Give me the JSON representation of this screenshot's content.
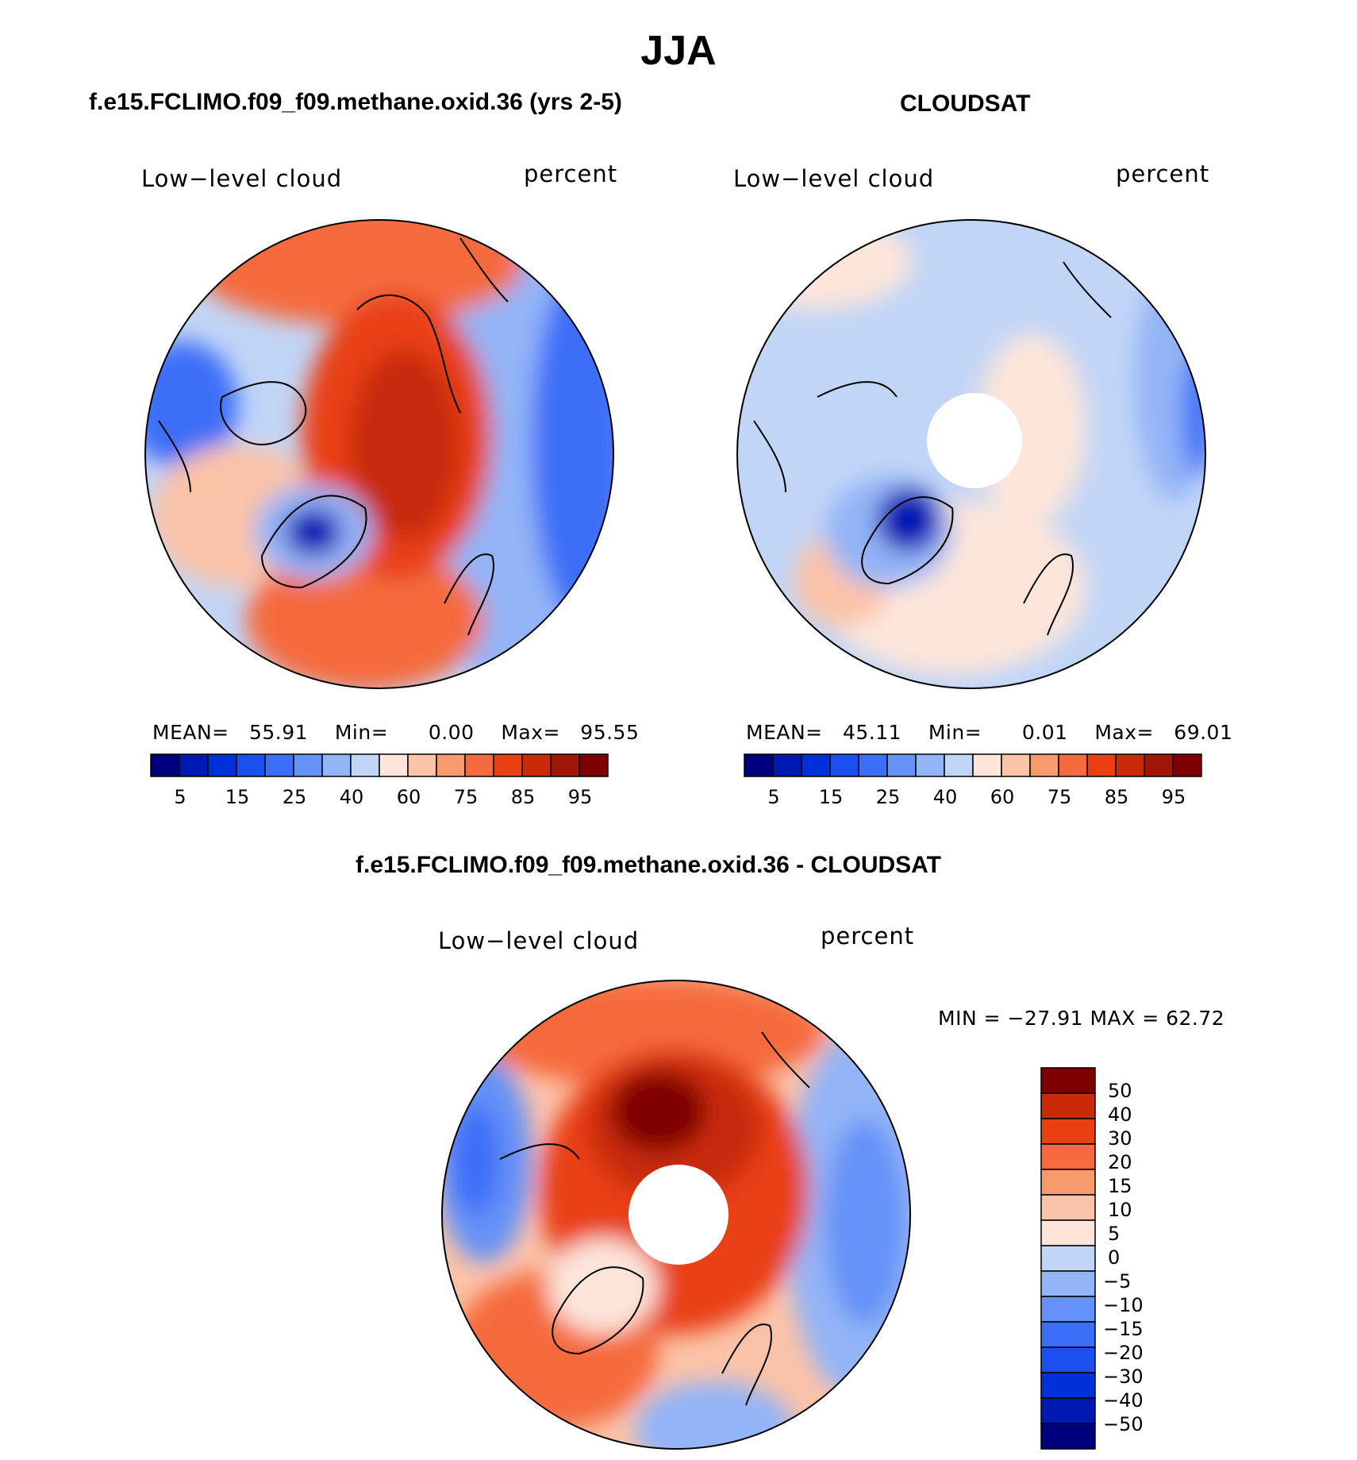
{
  "title": "JJA",
  "panels": {
    "model": {
      "case_title": "f.e15.FCLIMO.f09_f09.methane.oxid.36 (yrs 2-5)",
      "variable": "Low−level cloud",
      "units": "percent",
      "stats": {
        "mean_label": "MEAN=",
        "mean": "55.91",
        "min_label": "Min=",
        "min": "0.00",
        "max_label": "Max=",
        "max": "95.55"
      }
    },
    "obs": {
      "case_title": "CLOUDSAT",
      "variable": "Low−level cloud",
      "units": "percent",
      "stats": {
        "mean_label": "MEAN=",
        "mean": "45.11",
        "min_label": "Min=",
        "min": "0.01",
        "max_label": "Max=",
        "max": "69.01"
      }
    },
    "diff": {
      "case_title": "f.e15.FCLIMO.f09_f09.methane.oxid.36 - CLOUDSAT",
      "variable": "Low−level cloud",
      "units": "percent",
      "minmax_text": "MIN = −27.91 MAX =   62.72"
    }
  },
  "colorbars": {
    "abs": {
      "colors": [
        "#00007f",
        "#0019b2",
        "#0030d8",
        "#1c4ff0",
        "#3c6ef7",
        "#6592f7",
        "#93b4f7",
        "#c1d5f7",
        "#fde5da",
        "#fbc3a8",
        "#f8996e",
        "#f56a3e",
        "#e93f12",
        "#c82a0a",
        "#a01805",
        "#7f0000"
      ],
      "ticks": [
        "5",
        "15",
        "25",
        "40",
        "60",
        "75",
        "85",
        "95"
      ]
    },
    "diff": {
      "colors": [
        "#00007f",
        "#0019b2",
        "#0030d8",
        "#1c4ff0",
        "#3c6ef7",
        "#6592f7",
        "#93b4f7",
        "#c1d5f7",
        "#fde5da",
        "#fbc3a8",
        "#f8996e",
        "#f56a3e",
        "#e93f12",
        "#c82a0a",
        "#7f0000"
      ],
      "ticks": [
        "50",
        "40",
        "30",
        "20",
        "15",
        "10",
        "5",
        "0",
        "−5",
        "−10",
        "−15",
        "−20",
        "−30",
        "−40",
        "−50"
      ]
    }
  },
  "colors": {
    "land_outline": "#000000",
    "missing": "#ffffff"
  }
}
